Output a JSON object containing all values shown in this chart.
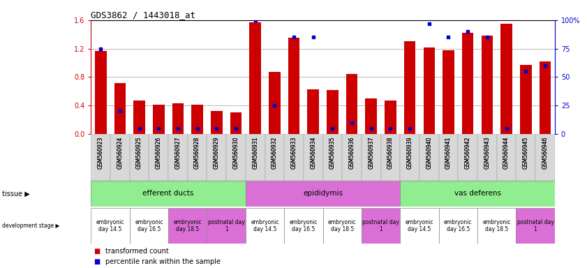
{
  "title": "GDS3862 / 1443018_at",
  "samples": [
    "GSM560923",
    "GSM560924",
    "GSM560925",
    "GSM560926",
    "GSM560927",
    "GSM560928",
    "GSM560929",
    "GSM560930",
    "GSM560931",
    "GSM560932",
    "GSM560933",
    "GSM560934",
    "GSM560935",
    "GSM560936",
    "GSM560937",
    "GSM560938",
    "GSM560939",
    "GSM560940",
    "GSM560941",
    "GSM560942",
    "GSM560943",
    "GSM560944",
    "GSM560945",
    "GSM560946"
  ],
  "transformed_count": [
    1.17,
    0.72,
    0.47,
    0.41,
    0.43,
    0.41,
    0.32,
    0.3,
    1.57,
    0.87,
    1.35,
    0.63,
    0.62,
    0.84,
    0.5,
    0.47,
    1.3,
    1.22,
    1.18,
    1.42,
    1.38,
    1.55,
    0.97,
    1.02
  ],
  "percentile_rank": [
    75,
    20,
    5,
    5,
    5,
    5,
    5,
    5,
    100,
    25,
    85,
    85,
    5,
    10,
    5,
    5,
    5,
    97,
    85,
    90,
    85,
    5,
    55,
    60
  ],
  "tissues": [
    {
      "name": "efferent ducts",
      "start": 0,
      "end": 8,
      "color": "#90ee90"
    },
    {
      "name": "epididymis",
      "start": 8,
      "end": 16,
      "color": "#da70d6"
    },
    {
      "name": "vas deferens",
      "start": 16,
      "end": 24,
      "color": "#90ee90"
    }
  ],
  "dev_stages": [
    {
      "name": "embryonic\nday 14.5",
      "start": 0,
      "end": 2,
      "color": "#ffffff"
    },
    {
      "name": "embryonic\nday 16.5",
      "start": 2,
      "end": 4,
      "color": "#ffffff"
    },
    {
      "name": "embryonic\nday 18.5",
      "start": 4,
      "end": 6,
      "color": "#da70d6"
    },
    {
      "name": "postnatal day\n1",
      "start": 6,
      "end": 8,
      "color": "#da70d6"
    },
    {
      "name": "embryonic\nday 14.5",
      "start": 8,
      "end": 10,
      "color": "#ffffff"
    },
    {
      "name": "embryonic\nday 16.5",
      "start": 10,
      "end": 12,
      "color": "#ffffff"
    },
    {
      "name": "embryonic\nday 18.5",
      "start": 12,
      "end": 14,
      "color": "#ffffff"
    },
    {
      "name": "postnatal day\n1",
      "start": 14,
      "end": 16,
      "color": "#da70d6"
    },
    {
      "name": "embryonic\nday 14.5",
      "start": 16,
      "end": 18,
      "color": "#ffffff"
    },
    {
      "name": "embryonic\nday 16.5",
      "start": 18,
      "end": 20,
      "color": "#ffffff"
    },
    {
      "name": "embryonic\nday 18.5",
      "start": 20,
      "end": 22,
      "color": "#ffffff"
    },
    {
      "name": "postnatal day\n1",
      "start": 22,
      "end": 24,
      "color": "#da70d6"
    }
  ],
  "bar_color": "#cc0000",
  "dot_color": "#0000cc",
  "ylim_left": [
    0.0,
    1.6
  ],
  "ylim_right": [
    0,
    100
  ],
  "yticks_left": [
    0.0,
    0.4,
    0.8,
    1.2,
    1.6
  ],
  "yticks_right": [
    0,
    25,
    50,
    75,
    100
  ],
  "background_color": "#ffffff",
  "axis_color_left": "#cc0000",
  "axis_color_right": "#0000cc"
}
